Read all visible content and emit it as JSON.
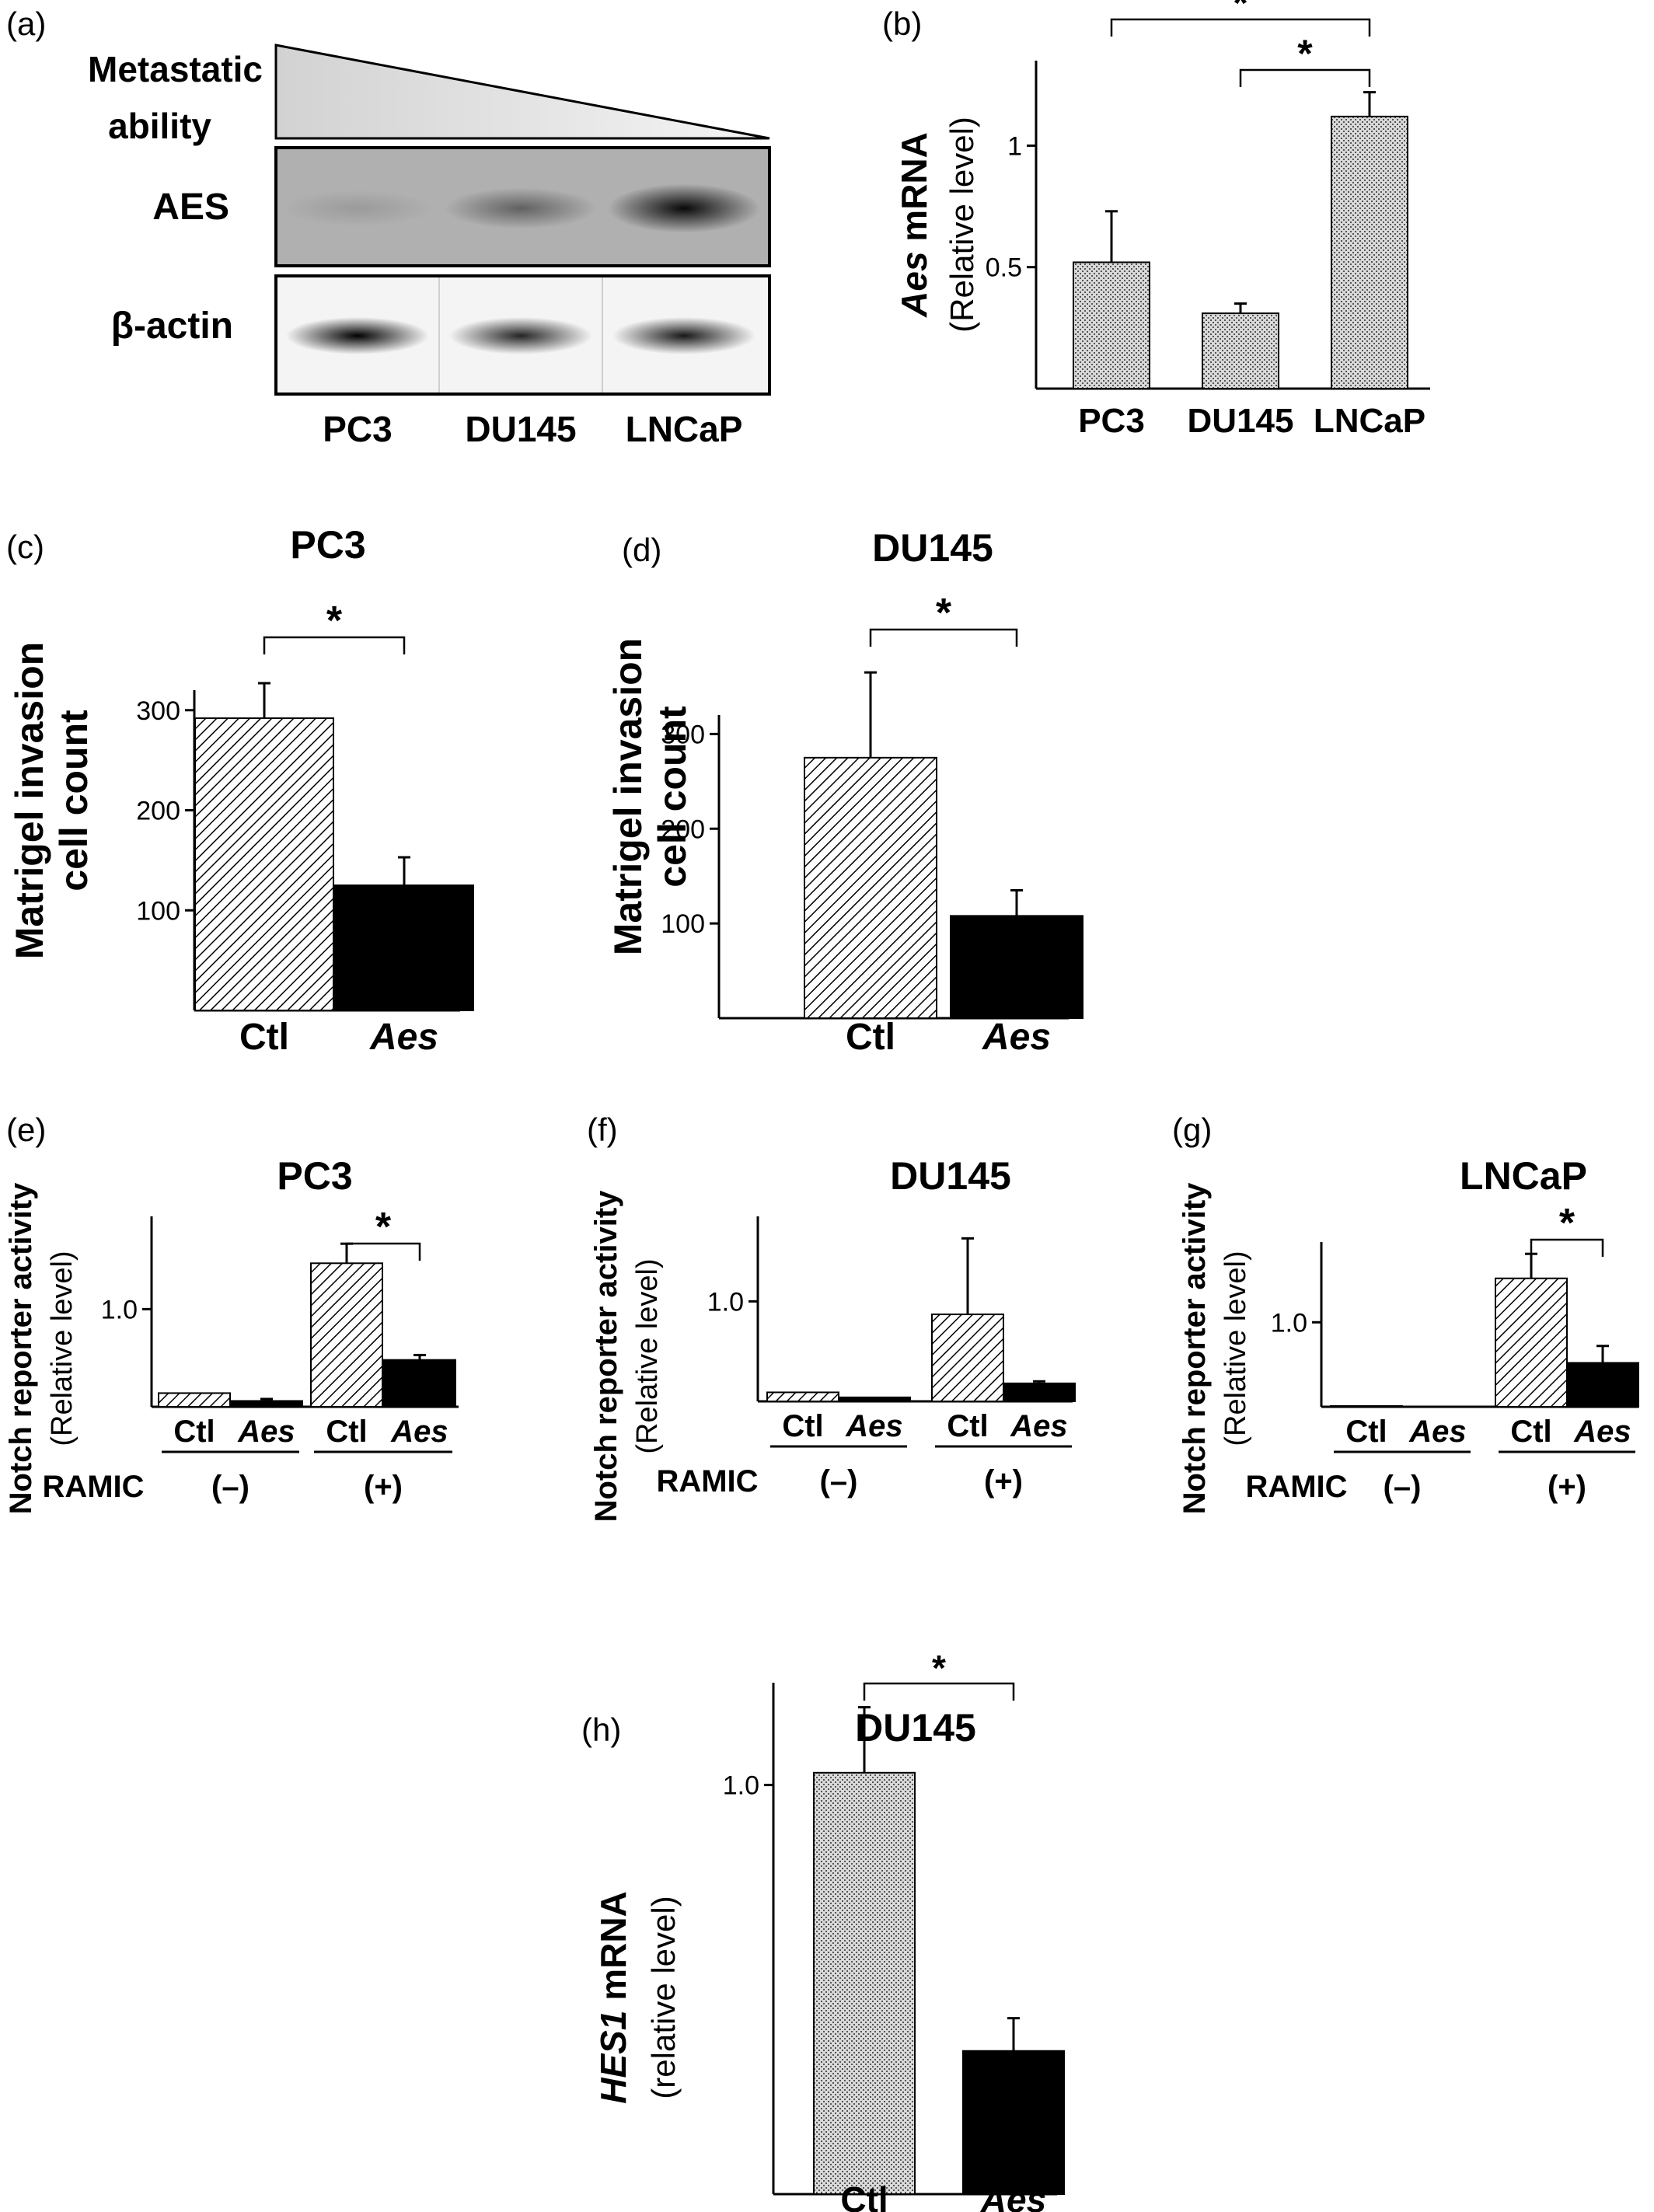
{
  "panels": {
    "a": {
      "letter": "(a)",
      "gradient_label_1": "Metastatic",
      "gradient_label_2": "ability",
      "blot1_label": "AES",
      "blot2_label": "β-actin",
      "lanes": [
        "PC3",
        "DU145",
        "LNCaP"
      ],
      "aes_band_intensity": [
        0.12,
        0.45,
        0.95
      ],
      "actin_band_intensity": [
        1.0,
        0.85,
        0.9
      ]
    },
    "b": {
      "letter": "(b)"
    },
    "c": {
      "letter": "(c)"
    },
    "d": {
      "letter": "(d)"
    },
    "e": {
      "letter": "(e)"
    },
    "f": {
      "letter": "(f)"
    },
    "g": {
      "letter": "(g)"
    },
    "h": {
      "letter": "(h)"
    }
  },
  "colors": {
    "ink": "#000000",
    "bar_light_fill": "#ffffff",
    "bar_dark_fill": "#000000",
    "gradient_fill": "#e6e6e6"
  },
  "chart_data": [
    {
      "id": "b",
      "type": "bar",
      "title": "",
      "ylabel_italic": "Aes",
      "ylabel_rest": " mRNA",
      "ylabel_2": "(Relative level)",
      "categories": [
        "PC3",
        "DU145",
        "LNCaP"
      ],
      "values": [
        0.52,
        0.31,
        1.12
      ],
      "errors": [
        0.21,
        0.04,
        0.1
      ],
      "fills": [
        "dots",
        "dots",
        "dots"
      ],
      "yticks": [
        0.5,
        1
      ],
      "ytick_labels": [
        "0.5",
        "1"
      ],
      "ylim": [
        0,
        1.35
      ],
      "sig": [
        {
          "from": 0,
          "to": 2,
          "label": "*"
        },
        {
          "from": 1,
          "to": 2,
          "label": "*"
        }
      ]
    },
    {
      "id": "c",
      "type": "bar",
      "title": "PC3",
      "ylabel": "Matrigel invasion",
      "ylabel_2": "cell count",
      "categories": [
        "Ctl",
        "Aes"
      ],
      "italic_categories": [
        "Aes"
      ],
      "values": [
        292,
        125
      ],
      "errors": [
        35,
        28
      ],
      "fills": [
        "hatch",
        "solid"
      ],
      "yticks": [
        100,
        200,
        300
      ],
      "ytick_labels": [
        "100",
        "200",
        "300"
      ],
      "ylim": [
        0,
        320
      ],
      "sig": [
        {
          "from": 0,
          "to": 1,
          "label": "*"
        }
      ]
    },
    {
      "id": "d",
      "type": "bar",
      "title": "DU145",
      "ylabel": "Matrigel invasion",
      "ylabel_2": "cell count",
      "categories": [
        "Ctl",
        "Aes"
      ],
      "italic_categories": [
        "Aes"
      ],
      "values": [
        275,
        108
      ],
      "errors": [
        90,
        27
      ],
      "fills": [
        "hatch",
        "solid"
      ],
      "yticks": [
        100,
        200,
        300
      ],
      "ytick_labels": [
        "100",
        "200",
        "300"
      ],
      "ylim": [
        0,
        320
      ],
      "sig": [
        {
          "from": 0,
          "to": 1,
          "label": "*"
        }
      ]
    },
    {
      "id": "e",
      "type": "bar",
      "title": "PC3",
      "ylabel": "Notch reporter activity",
      "ylabel_2": "(Relative level)",
      "categories": [
        "Ctl",
        "Aes",
        "Ctl",
        "Aes"
      ],
      "italic_categories": [
        "Aes"
      ],
      "groups": [
        "(–)",
        "(+)"
      ],
      "group_label": "RAMIC",
      "values": [
        0.14,
        0.06,
        1.47,
        0.48
      ],
      "errors": [
        0,
        0.02,
        0.2,
        0.05
      ],
      "fills": [
        "hatch",
        "solid",
        "hatch",
        "solid"
      ],
      "yticks": [
        1.0
      ],
      "ytick_labels": [
        "1.0"
      ],
      "ylim": [
        0,
        1.95
      ],
      "sig": [
        {
          "from": 2,
          "to": 3,
          "label": "*"
        }
      ]
    },
    {
      "id": "f",
      "type": "bar",
      "title": "DU145",
      "ylabel": "Notch reporter activity",
      "ylabel_2": "(Relative level)",
      "categories": [
        "Ctl",
        "Aes",
        "Ctl",
        "Aes"
      ],
      "italic_categories": [
        "Aes"
      ],
      "groups": [
        "(–)",
        "(+)"
      ],
      "group_label": "RAMIC",
      "values": [
        0.09,
        0.04,
        0.87,
        0.18
      ],
      "errors": [
        0,
        0,
        0.76,
        0.02
      ],
      "fills": [
        "hatch",
        "solid",
        "hatch",
        "solid"
      ],
      "yticks": [
        1.0
      ],
      "ytick_labels": [
        "1.0"
      ],
      "ylim": [
        0,
        1.85
      ],
      "sig": []
    },
    {
      "id": "g",
      "type": "bar",
      "title": "LNCaP",
      "ylabel": "Notch reporter activity",
      "ylabel_2": "(Relative level)",
      "categories": [
        "Ctl",
        "Aes",
        "Ctl",
        "Aes"
      ],
      "italic_categories": [
        "Aes"
      ],
      "groups": [
        "(–)",
        "(+)"
      ],
      "group_label": "RAMIC",
      "values": [
        0.01,
        0.0,
        1.52,
        0.52
      ],
      "errors": [
        0,
        0,
        0.29,
        0.2
      ],
      "fills": [
        "hatch",
        "solid",
        "hatch",
        "solid"
      ],
      "yticks": [
        1.0
      ],
      "ytick_labels": [
        "1.0"
      ],
      "ylim": [
        0,
        1.95
      ],
      "sig": [
        {
          "from": 2,
          "to": 3,
          "label": "*"
        }
      ]
    },
    {
      "id": "h",
      "type": "bar",
      "title": "DU145",
      "ylabel_italic": "HES1",
      "ylabel_rest": " mRNA",
      "ylabel_2": "(relative level)",
      "categories": [
        "Ctl",
        "Aes"
      ],
      "italic_categories": [
        "Aes"
      ],
      "values": [
        1.03,
        0.35
      ],
      "errors": [
        0.16,
        0.08
      ],
      "fills": [
        "dots",
        "solid"
      ],
      "yticks": [
        1.0
      ],
      "ytick_labels": [
        "1.0"
      ],
      "ylim": [
        0,
        1.25
      ],
      "sig": [
        {
          "from": 0,
          "to": 1,
          "label": "*"
        }
      ]
    }
  ]
}
